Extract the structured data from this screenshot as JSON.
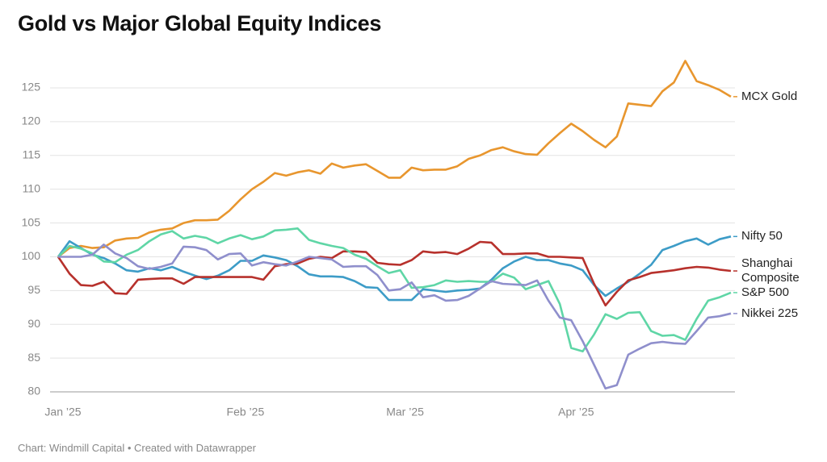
{
  "chart_data": {
    "type": "line",
    "title": "Gold vs Major Global Equity Indices",
    "source": "Chart: Windmill Capital • Created with Datawrapper",
    "categories": [
      "Jan ’25",
      null,
      null,
      null,
      null,
      null,
      null,
      null,
      null,
      null,
      null,
      null,
      null,
      null,
      null,
      null,
      "Feb ’25",
      null,
      null,
      null,
      null,
      null,
      null,
      null,
      null,
      null,
      null,
      null,
      null,
      null,
      "Mar ’25",
      null,
      null,
      null,
      null,
      null,
      null,
      null,
      null,
      null,
      null,
      null,
      null,
      null,
      null,
      "Apr ’25",
      null,
      null,
      null,
      null,
      null,
      null,
      null,
      null,
      null,
      null,
      null,
      null,
      null,
      null
    ],
    "ylim": [
      79,
      130
    ],
    "yticks": [
      80,
      85,
      90,
      95,
      100,
      105,
      110,
      115,
      120,
      125
    ],
    "grid": true,
    "series": [
      {
        "name": "MCX Gold",
        "color": "#e8962e",
        "values": [
          100,
          101.3,
          101.6,
          101.3,
          101.4,
          102.4,
          102.7,
          102.8,
          103.6,
          104,
          104.2,
          105,
          105.4,
          105.4,
          105.5,
          106.8,
          108.5,
          110,
          111.1,
          112.4,
          112,
          112.5,
          112.8,
          112.3,
          113.8,
          113.2,
          113.5,
          113.7,
          112.7,
          111.7,
          111.7,
          113.2,
          112.8,
          112.9,
          112.9,
          113.4,
          114.5,
          115,
          115.8,
          116.2,
          115.6,
          115.2,
          115.1,
          116.8,
          118.3,
          119.7,
          118.6,
          117.3,
          116.2,
          117.8,
          122.7,
          122.5,
          122.3,
          124.5,
          125.8,
          129,
          126,
          125.4,
          124.7,
          123.7
        ]
      },
      {
        "name": "Nifty 50",
        "color": "#3d9cc7",
        "values": [
          100,
          102.3,
          101.3,
          100.3,
          99.8,
          99,
          98,
          97.8,
          98.3,
          98,
          98.5,
          97.8,
          97.2,
          96.7,
          97.2,
          98,
          99.4,
          99.4,
          100.2,
          99.9,
          99.5,
          98.6,
          97.4,
          97.1,
          97.1,
          97,
          96.4,
          95.5,
          95.4,
          93.6,
          93.6,
          93.6,
          95.2,
          95,
          94.8,
          95,
          95.1,
          95.3,
          96.6,
          98.3,
          99.3,
          100,
          99.5,
          99.5,
          99,
          98.7,
          98,
          95.8,
          94.2,
          95.3,
          96.3,
          97.5,
          98.8,
          101,
          101.6,
          102.3,
          102.7,
          101.8,
          102.6,
          103
        ]
      },
      {
        "name": "Shanghai Composite",
        "color": "#b7312c",
        "values": [
          100,
          97.5,
          95.8,
          95.7,
          96.3,
          94.6,
          94.5,
          96.6,
          96.7,
          96.8,
          96.8,
          96,
          97,
          97,
          97,
          97,
          97,
          97,
          96.6,
          98.6,
          98.9,
          99,
          99.7,
          100,
          99.8,
          100.8,
          100.8,
          100.7,
          99.1,
          98.9,
          98.8,
          99.5,
          100.8,
          100.6,
          100.7,
          100.4,
          101.2,
          102.2,
          102.1,
          100.4,
          100.4,
          100.5,
          100.5,
          100,
          100,
          99.9,
          99.8,
          96,
          92.8,
          94.8,
          96.5,
          97,
          97.6,
          97.8,
          98,
          98.3,
          98.5,
          98.4,
          98.1,
          97.9
        ]
      },
      {
        "name": "S&P 500",
        "color": "#5fd6a6",
        "values": [
          100,
          101.6,
          101.2,
          100.5,
          99.3,
          99.2,
          100.3,
          101,
          102.3,
          103.3,
          103.8,
          102.7,
          103.1,
          102.8,
          102,
          102.7,
          103.2,
          102.6,
          103,
          103.9,
          104,
          104.2,
          102.5,
          102,
          101.6,
          101.3,
          100.3,
          99.7,
          98.6,
          97.6,
          98,
          95.4,
          95.5,
          95.8,
          96.5,
          96.3,
          96.4,
          96.3,
          96.3,
          97.5,
          96.9,
          95.2,
          95.8,
          96.4,
          93,
          86.5,
          86,
          88.5,
          91.5,
          90.8,
          91.7,
          91.8,
          89,
          88.3,
          88.4,
          87.7,
          90.8,
          93.5,
          94,
          94.7
        ]
      },
      {
        "name": "Nikkei 225",
        "color": "#8f8fcc",
        "values": [
          100,
          100,
          100,
          100.3,
          101.8,
          100.5,
          99.8,
          98.6,
          98.2,
          98.5,
          99,
          101.5,
          101.4,
          101,
          99.6,
          100.4,
          100.5,
          98.7,
          99.2,
          98.9,
          98.7,
          99.3,
          100,
          99.8,
          99.6,
          98.5,
          98.6,
          98.6,
          97.3,
          95,
          95.2,
          96.2,
          94,
          94.3,
          93.5,
          93.6,
          94.2,
          95.3,
          96.4,
          96,
          95.9,
          95.8,
          96.5,
          93.5,
          91,
          90.6,
          87.5,
          84,
          80.5,
          81,
          85.5,
          86.4,
          87.2,
          87.4,
          87.2,
          87.1,
          89,
          91,
          91.2,
          91.6
        ]
      }
    ]
  }
}
